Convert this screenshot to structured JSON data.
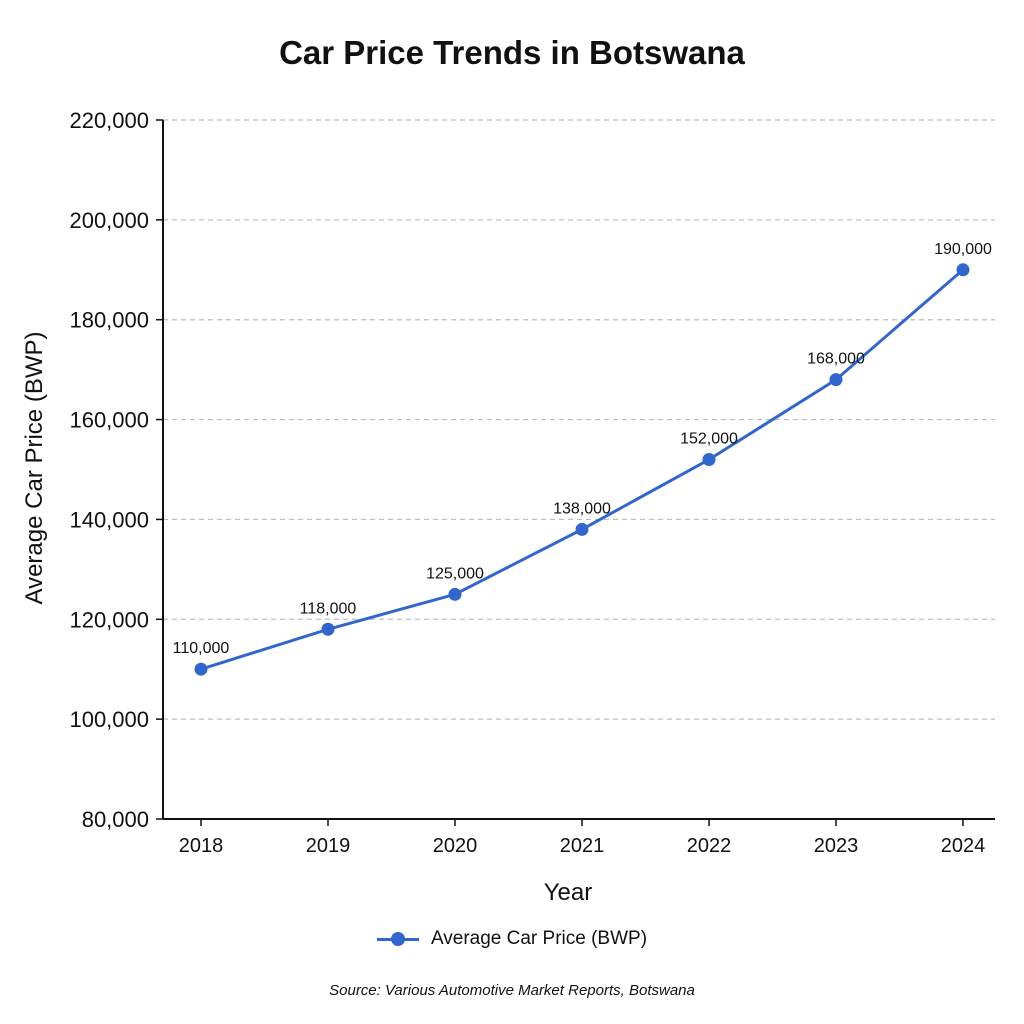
{
  "chart_data": {
    "type": "line",
    "title": "Car Price Trends in Botswana",
    "xlabel": "Year",
    "ylabel": "Average Car Price (BWP)",
    "categories": [
      "2018",
      "2019",
      "2020",
      "2021",
      "2022",
      "2023",
      "2024"
    ],
    "series": [
      {
        "name": "Average Car Price (BWP)",
        "values": [
          110000,
          118000,
          125000,
          138000,
          152000,
          168000,
          190000
        ],
        "data_labels": [
          "110,000",
          "118,000",
          "125,000",
          "138,000",
          "152,000",
          "168,000",
          "190,000"
        ],
        "color": "#3366cc"
      }
    ],
    "ylim": [
      80000,
      220000
    ],
    "yticks": [
      80000,
      100000,
      120000,
      140000,
      160000,
      180000,
      200000,
      220000
    ],
    "ytick_labels": [
      "80,000",
      "100,000",
      "120,000",
      "140,000",
      "160,000",
      "180,000",
      "200,000",
      "220,000"
    ],
    "grid": true,
    "legend_position": "bottom-center",
    "source": "Source: Various Automotive Market Reports, Botswana"
  }
}
